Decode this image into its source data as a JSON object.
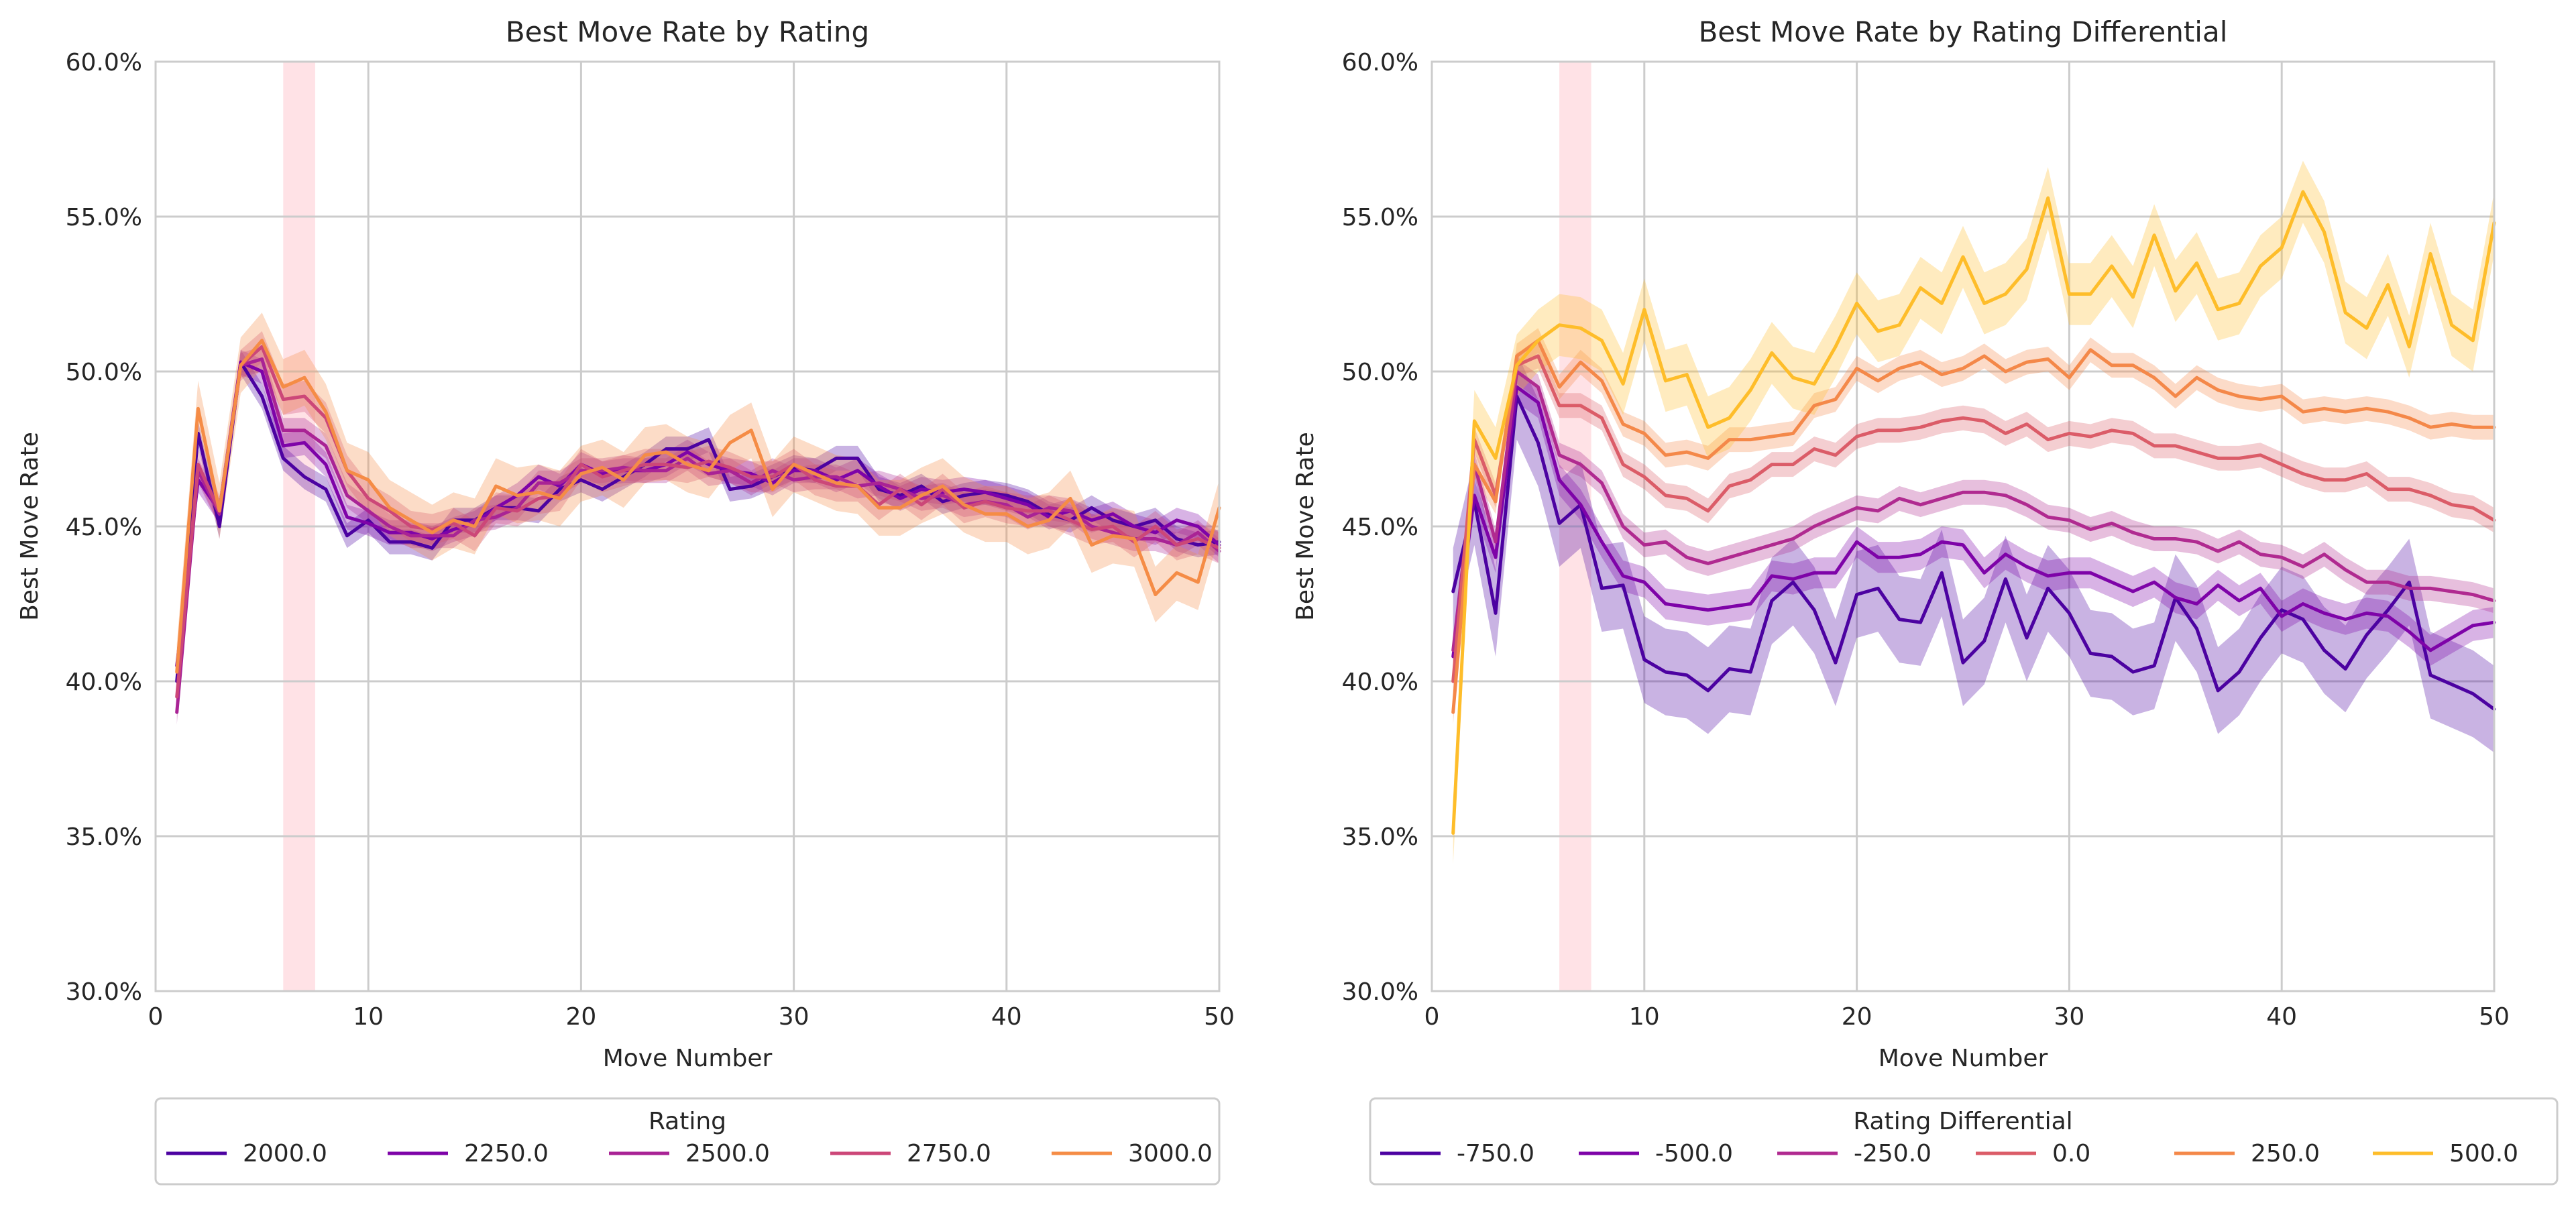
{
  "colors": {
    "grid": "#cccccc",
    "spine": "#cccccc",
    "highlight": "#ffb6c1",
    "c2000": "#4c02a1",
    "c2250": "#7e03a8",
    "c2500": "#a92395",
    "c2750": "#cc4778",
    "c3000": "#f58c46",
    "d_750": "#4c02a1",
    "d_500": "#7e03a8",
    "d_250": "#b02a90",
    "d0": "#db5c68",
    "d250": "#f48849",
    "d500": "#febd2a"
  },
  "chart_data": [
    {
      "type": "line",
      "title": "Best Move Rate by Rating",
      "xlabel": "Move Number",
      "ylabel": "Best Move Rate",
      "xlim": [
        0,
        50
      ],
      "ylim": [
        0.3,
        0.6
      ],
      "xticks": [
        0,
        10,
        20,
        30,
        40,
        50
      ],
      "xtick_labels": [
        "0",
        "10",
        "20",
        "30",
        "40",
        "50"
      ],
      "yticks": [
        0.3,
        0.35,
        0.4,
        0.45,
        0.5,
        0.55,
        0.6
      ],
      "ytick_labels": [
        "30.0%",
        "35.0%",
        "40.0%",
        "45.0%",
        "50.0%",
        "55.0%",
        "60.0%"
      ],
      "grid": true,
      "highlight_span": [
        6,
        7.5
      ],
      "legend_title": "Rating",
      "legend_position": "below",
      "x": [
        1,
        2,
        3,
        4,
        5,
        6,
        7,
        8,
        9,
        10,
        11,
        12,
        13,
        14,
        15,
        16,
        17,
        18,
        19,
        20,
        21,
        22,
        23,
        24,
        25,
        26,
        27,
        28,
        29,
        30,
        31,
        32,
        33,
        34,
        35,
        36,
        37,
        38,
        39,
        40,
        41,
        42,
        43,
        44,
        45,
        46,
        47,
        48,
        49,
        50
      ],
      "series": [
        {
          "name": "2000.0",
          "color": "#4c02a1",
          "band": 0.004,
          "values": [
            0.4,
            0.48,
            0.45,
            0.503,
            0.492,
            0.472,
            0.466,
            0.462,
            0.447,
            0.452,
            0.445,
            0.445,
            0.443,
            0.452,
            0.452,
            0.456,
            0.456,
            0.455,
            0.462,
            0.465,
            0.462,
            0.466,
            0.47,
            0.475,
            0.475,
            0.478,
            0.462,
            0.463,
            0.466,
            0.469,
            0.468,
            0.472,
            0.472,
            0.462,
            0.46,
            0.463,
            0.458,
            0.46,
            0.461,
            0.46,
            0.458,
            0.454,
            0.452,
            0.456,
            0.452,
            0.45,
            0.452,
            0.446,
            0.444,
            0.445
          ]
        },
        {
          "name": "2250.0",
          "color": "#7e03a8",
          "band": 0.004,
          "values": [
            0.405,
            0.465,
            0.455,
            0.503,
            0.5,
            0.476,
            0.477,
            0.47,
            0.453,
            0.451,
            0.448,
            0.448,
            0.446,
            0.449,
            0.451,
            0.456,
            0.46,
            0.466,
            0.463,
            0.47,
            0.467,
            0.468,
            0.468,
            0.47,
            0.474,
            0.47,
            0.468,
            0.467,
            0.464,
            0.468,
            0.468,
            0.465,
            0.468,
            0.463,
            0.459,
            0.462,
            0.461,
            0.462,
            0.461,
            0.459,
            0.457,
            0.453,
            0.455,
            0.452,
            0.454,
            0.45,
            0.448,
            0.452,
            0.45,
            0.444
          ]
        },
        {
          "name": "2500.0",
          "color": "#a92395",
          "band": 0.004,
          "values": [
            0.39,
            0.468,
            0.454,
            0.502,
            0.504,
            0.481,
            0.481,
            0.476,
            0.46,
            0.455,
            0.45,
            0.447,
            0.447,
            0.447,
            0.452,
            0.453,
            0.456,
            0.464,
            0.464,
            0.468,
            0.468,
            0.469,
            0.468,
            0.468,
            0.472,
            0.467,
            0.468,
            0.464,
            0.468,
            0.465,
            0.466,
            0.466,
            0.463,
            0.464,
            0.462,
            0.459,
            0.46,
            0.457,
            0.458,
            0.457,
            0.453,
            0.456,
            0.455,
            0.45,
            0.448,
            0.446,
            0.446,
            0.444,
            0.448,
            0.442
          ]
        },
        {
          "name": "2750.0",
          "color": "#cc4778",
          "band": 0.005,
          "values": [
            0.395,
            0.47,
            0.455,
            0.502,
            0.508,
            0.491,
            0.492,
            0.485,
            0.468,
            0.459,
            0.455,
            0.45,
            0.449,
            0.451,
            0.447,
            0.456,
            0.455,
            0.459,
            0.46,
            0.47,
            0.466,
            0.468,
            0.47,
            0.47,
            0.469,
            0.471,
            0.469,
            0.466,
            0.466,
            0.47,
            0.465,
            0.463,
            0.463,
            0.457,
            0.462,
            0.457,
            0.462,
            0.456,
            0.458,
            0.456,
            0.455,
            0.455,
            0.452,
            0.449,
            0.45,
            0.445,
            0.45,
            0.444,
            0.446,
            0.443
          ]
        },
        {
          "name": "3000.0",
          "color": "#f58c46",
          "band": 0.009,
          "values": [
            0.403,
            0.488,
            0.455,
            0.502,
            0.51,
            0.495,
            0.498,
            0.487,
            0.468,
            0.465,
            0.456,
            0.452,
            0.448,
            0.452,
            0.45,
            0.463,
            0.46,
            0.461,
            0.459,
            0.467,
            0.469,
            0.465,
            0.473,
            0.474,
            0.47,
            0.468,
            0.477,
            0.481,
            0.462,
            0.47,
            0.467,
            0.464,
            0.463,
            0.456,
            0.456,
            0.46,
            0.463,
            0.457,
            0.454,
            0.454,
            0.45,
            0.452,
            0.459,
            0.444,
            0.447,
            0.446,
            0.428,
            0.435,
            0.432,
            0.456
          ]
        }
      ]
    },
    {
      "type": "line",
      "title": "Best Move Rate by Rating Differential",
      "xlabel": "Move Number",
      "ylabel": "Best Move Rate",
      "xlim": [
        0,
        50
      ],
      "ylim": [
        0.3,
        0.6
      ],
      "xticks": [
        0,
        10,
        20,
        30,
        40,
        50
      ],
      "xtick_labels": [
        "0",
        "10",
        "20",
        "30",
        "40",
        "50"
      ],
      "yticks": [
        0.3,
        0.35,
        0.4,
        0.45,
        0.5,
        0.55,
        0.6
      ],
      "ytick_labels": [
        "30.0%",
        "35.0%",
        "40.0%",
        "45.0%",
        "50.0%",
        "55.0%",
        "60.0%"
      ],
      "grid": true,
      "highlight_span": [
        6,
        7.5
      ],
      "legend_title": "Rating Differential",
      "legend_position": "below",
      "x": [
        1,
        2,
        3,
        4,
        5,
        6,
        7,
        8,
        9,
        10,
        11,
        12,
        13,
        14,
        15,
        16,
        17,
        18,
        19,
        20,
        21,
        22,
        23,
        24,
        25,
        26,
        27,
        28,
        29,
        30,
        31,
        32,
        33,
        34,
        35,
        36,
        37,
        38,
        39,
        40,
        41,
        42,
        43,
        44,
        45,
        46,
        47,
        48,
        49,
        50
      ],
      "series": [
        {
          "name": "-750.0",
          "color": "#4c02a1",
          "band": 0.014,
          "values": [
            0.429,
            0.458,
            0.422,
            0.492,
            0.477,
            0.451,
            0.457,
            0.43,
            0.431,
            0.407,
            0.403,
            0.402,
            0.397,
            0.404,
            0.403,
            0.426,
            0.432,
            0.423,
            0.406,
            0.428,
            0.43,
            0.42,
            0.419,
            0.435,
            0.406,
            0.413,
            0.433,
            0.414,
            0.43,
            0.422,
            0.409,
            0.408,
            0.403,
            0.405,
            0.427,
            0.417,
            0.397,
            0.403,
            0.414,
            0.423,
            0.42,
            0.41,
            0.404,
            0.415,
            0.423,
            0.432,
            0.402,
            0.399,
            0.396,
            0.391
          ]
        },
        {
          "name": "-500.0",
          "color": "#7e03a8",
          "band": 0.005,
          "values": [
            0.408,
            0.46,
            0.44,
            0.495,
            0.49,
            0.465,
            0.457,
            0.445,
            0.434,
            0.432,
            0.425,
            0.424,
            0.423,
            0.424,
            0.425,
            0.434,
            0.433,
            0.435,
            0.435,
            0.445,
            0.44,
            0.44,
            0.441,
            0.445,
            0.444,
            0.435,
            0.441,
            0.437,
            0.434,
            0.435,
            0.435,
            0.432,
            0.429,
            0.432,
            0.427,
            0.425,
            0.431,
            0.426,
            0.43,
            0.421,
            0.425,
            0.422,
            0.42,
            0.422,
            0.421,
            0.416,
            0.41,
            0.414,
            0.418,
            0.419
          ]
        },
        {
          "name": "-250.0",
          "color": "#b02a90",
          "band": 0.004,
          "values": [
            0.41,
            0.47,
            0.445,
            0.5,
            0.495,
            0.473,
            0.47,
            0.464,
            0.45,
            0.444,
            0.445,
            0.44,
            0.438,
            0.44,
            0.442,
            0.444,
            0.446,
            0.45,
            0.453,
            0.456,
            0.455,
            0.459,
            0.457,
            0.459,
            0.461,
            0.461,
            0.46,
            0.457,
            0.453,
            0.452,
            0.449,
            0.451,
            0.448,
            0.446,
            0.446,
            0.445,
            0.442,
            0.445,
            0.441,
            0.44,
            0.437,
            0.441,
            0.436,
            0.432,
            0.432,
            0.43,
            0.43,
            0.429,
            0.428,
            0.426
          ]
        },
        {
          "name": "0.0",
          "color": "#db5c68",
          "band": 0.004,
          "values": [
            0.4,
            0.478,
            0.46,
            0.502,
            0.505,
            0.489,
            0.489,
            0.485,
            0.47,
            0.466,
            0.46,
            0.459,
            0.455,
            0.463,
            0.465,
            0.47,
            0.47,
            0.475,
            0.473,
            0.479,
            0.481,
            0.481,
            0.482,
            0.484,
            0.485,
            0.484,
            0.48,
            0.483,
            0.478,
            0.48,
            0.479,
            0.481,
            0.48,
            0.476,
            0.476,
            0.474,
            0.472,
            0.472,
            0.473,
            0.47,
            0.467,
            0.465,
            0.465,
            0.467,
            0.462,
            0.462,
            0.46,
            0.457,
            0.456,
            0.452
          ]
        },
        {
          "name": "250.0",
          "color": "#f48849",
          "band": 0.004,
          "values": [
            0.39,
            0.47,
            0.458,
            0.505,
            0.51,
            0.495,
            0.503,
            0.497,
            0.483,
            0.48,
            0.473,
            0.474,
            0.472,
            0.478,
            0.478,
            0.479,
            0.48,
            0.489,
            0.491,
            0.501,
            0.497,
            0.501,
            0.503,
            0.499,
            0.501,
            0.505,
            0.5,
            0.503,
            0.504,
            0.498,
            0.507,
            0.502,
            0.502,
            0.498,
            0.492,
            0.498,
            0.494,
            0.492,
            0.491,
            0.492,
            0.487,
            0.488,
            0.487,
            0.488,
            0.487,
            0.485,
            0.482,
            0.483,
            0.482,
            0.482
          ]
        },
        {
          "name": "500.0",
          "color": "#febd2a",
          "band": 0.01,
          "values": [
            0.351,
            0.484,
            0.472,
            0.502,
            0.51,
            0.515,
            0.514,
            0.51,
            0.496,
            0.52,
            0.497,
            0.499,
            0.482,
            0.485,
            0.494,
            0.506,
            0.498,
            0.496,
            0.508,
            0.522,
            0.513,
            0.515,
            0.527,
            0.522,
            0.537,
            0.522,
            0.525,
            0.533,
            0.556,
            0.525,
            0.525,
            0.534,
            0.524,
            0.544,
            0.526,
            0.535,
            0.52,
            0.522,
            0.534,
            0.54,
            0.558,
            0.545,
            0.519,
            0.514,
            0.528,
            0.508,
            0.538,
            0.515,
            0.51,
            0.548
          ]
        }
      ]
    }
  ]
}
